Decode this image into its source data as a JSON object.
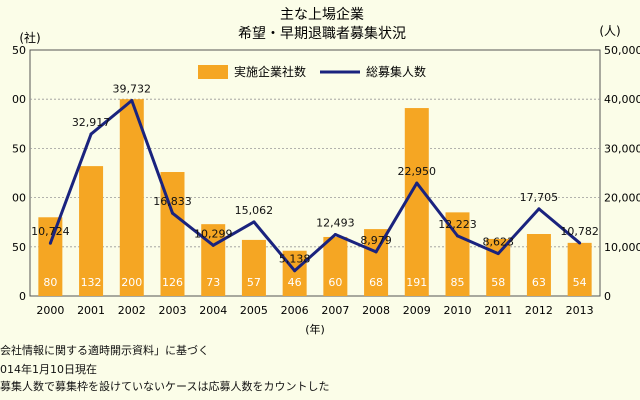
{
  "chart_data": {
    "type": "bar",
    "title": "主な上場企業",
    "subtitle": "希望・早期退職者募集状況",
    "xlabel": "(年)",
    "ylabel_left": "(社)",
    "ylabel_right": "(人)",
    "categories": [
      "2000",
      "2001",
      "2002",
      "2003",
      "2004",
      "2005",
      "2006",
      "2007",
      "2008",
      "2009",
      "2010",
      "2011",
      "2012",
      "2013"
    ],
    "y_left_ticks": [
      "0",
      "50",
      "100",
      "150",
      "200",
      "250"
    ],
    "y_left_tick_labels": [
      "0",
      "50",
      "00",
      "50",
      "00",
      "50"
    ],
    "y_right_ticks": [
      "0",
      "10,000",
      "20,000",
      "30,000",
      "40,000",
      "50,000"
    ],
    "ylim_left": [
      0,
      250
    ],
    "ylim_right": [
      0,
      50000
    ],
    "series": [
      {
        "name": "実施企業社数",
        "axis": "left",
        "type": "bar",
        "color": "#f5a623",
        "values": [
          80,
          132,
          200,
          126,
          73,
          57,
          46,
          60,
          68,
          191,
          85,
          58,
          63,
          54
        ],
        "labels": [
          "80",
          "132",
          "200",
          "126",
          "73",
          "57",
          "46",
          "60",
          "68",
          "191",
          "85",
          "58",
          "63",
          "54"
        ]
      },
      {
        "name": "総募集人数",
        "axis": "right",
        "type": "line",
        "color": "#1a237e",
        "values": [
          10724,
          32917,
          39732,
          16833,
          10299,
          15062,
          5138,
          12493,
          8979,
          22950,
          12223,
          8623,
          17705,
          10782
        ],
        "labels": [
          "10,724",
          "32,917",
          "39,732",
          "16,833",
          "10,299",
          "15,062",
          "5,138",
          "12,493",
          "8,979",
          "22,950",
          "12,223",
          "8,623",
          "17,705",
          "10,782"
        ]
      }
    ],
    "grid": true,
    "legend": "top-center"
  },
  "notes": [
    "会社情報に関する適時開示資料」に基づく",
    "014年1月10日現在",
    "募集人数で募集枠を設けていないケースは応募人数をカウントした"
  ]
}
